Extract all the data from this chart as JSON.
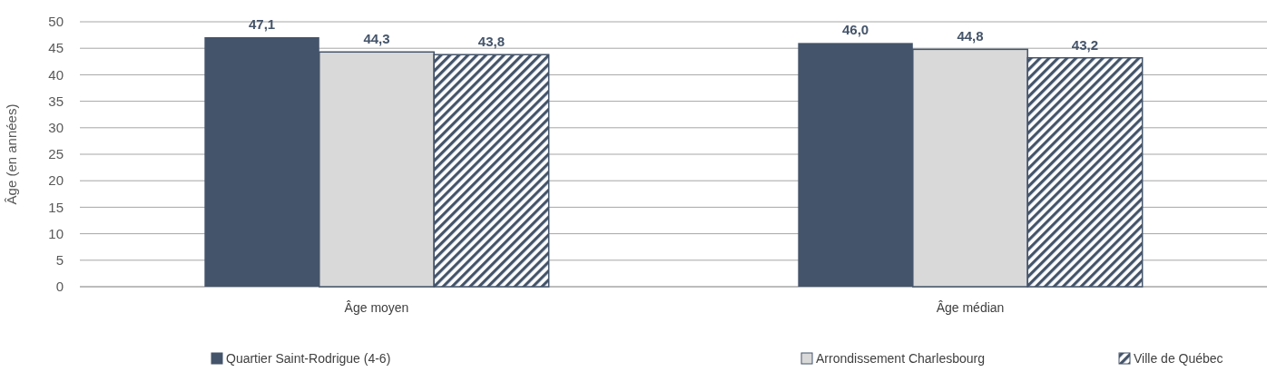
{
  "chart_data": {
    "type": "bar",
    "ylabel": "Âge (en années)",
    "categories": [
      "Âge moyen",
      "Âge médian"
    ],
    "series": [
      {
        "name": "Quartier Saint-Rodrigue (4-6)",
        "color": "#44546a",
        "values": [
          47.1,
          46.0
        ],
        "value_labels": [
          "47,1",
          "46,0"
        ]
      },
      {
        "name": "Arrondissement Charlesbourg",
        "color": "#d9d9d9",
        "values": [
          44.3,
          44.8
        ],
        "value_labels": [
          "44,3",
          "44,8"
        ]
      },
      {
        "name": "Ville de Québec",
        "color": "#44546a",
        "values": [
          43.8,
          43.2
        ],
        "value_labels": [
          "43,8",
          "43,2"
        ]
      }
    ],
    "ylim": [
      0,
      50
    ],
    "yticks": [
      0,
      5,
      10,
      15,
      20,
      25,
      30,
      35,
      40,
      45,
      50
    ],
    "grid": "y",
    "legend": "bottom"
  }
}
